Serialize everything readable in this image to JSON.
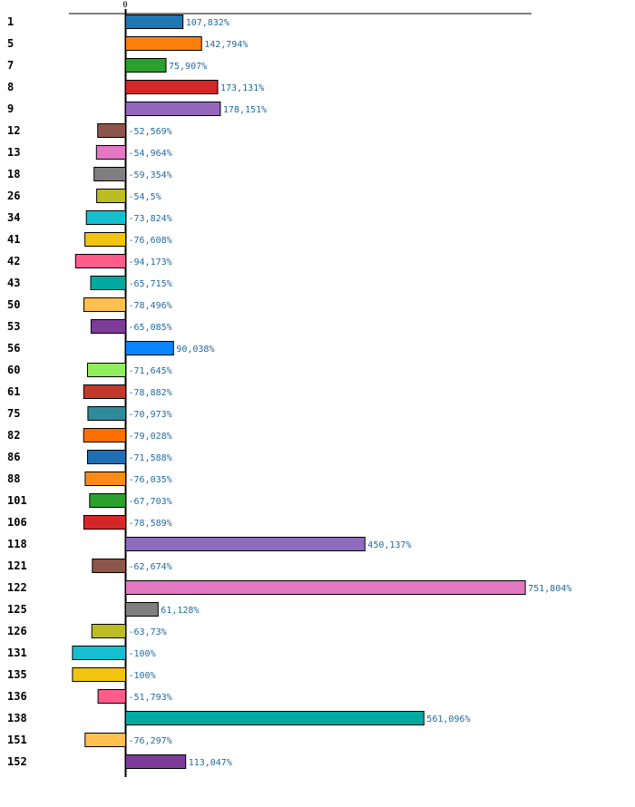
{
  "chart_data": {
    "type": "bar",
    "orientation": "horizontal",
    "title": "",
    "xlabel": "",
    "ylabel": "",
    "zero_tick_label": "0",
    "grid": false,
    "legend": "none",
    "xlim": [
      -100,
      760
    ],
    "categories": [
      "1",
      "5",
      "7",
      "8",
      "9",
      "12",
      "13",
      "18",
      "26",
      "34",
      "41",
      "42",
      "43",
      "50",
      "53",
      "56",
      "60",
      "61",
      "75",
      "82",
      "86",
      "88",
      "101",
      "106",
      "118",
      "121",
      "122",
      "125",
      "126",
      "131",
      "135",
      "136",
      "138",
      "151",
      "152"
    ],
    "values": [
      107.832,
      142.794,
      75.907,
      173.131,
      178.151,
      -52.569,
      -54.964,
      -59.354,
      -54.5,
      -73.824,
      -76.608,
      -94.173,
      -65.715,
      -78.496,
      -65.085,
      90.038,
      -71.645,
      -78.882,
      -70.973,
      -79.028,
      -71.588,
      -76.035,
      -67.703,
      -78.589,
      450.137,
      -62.674,
      751.804,
      61.128,
      -63.73,
      -100,
      -100,
      -51.793,
      561.096,
      -76.297,
      113.047
    ],
    "value_labels": [
      "107,832%",
      "142,794%",
      "75,907%",
      "173,131%",
      "178,151%",
      "-52,569%",
      "-54,964%",
      "-59,354%",
      "-54,5%",
      "-73,824%",
      "-76,608%",
      "-94,173%",
      "-65,715%",
      "-78,496%",
      "-65,085%",
      "90,038%",
      "-71,645%",
      "-78,882%",
      "-70,973%",
      "-79,028%",
      "-71,588%",
      "-76,035%",
      "-67,703%",
      "-78,589%",
      "450,137%",
      "-62,674%",
      "751,804%",
      "61,128%",
      "-63,73%",
      "-100%",
      "-100%",
      "-51,793%",
      "561,096%",
      "-76,297%",
      "113,047%"
    ],
    "colors": [
      "#1f77b4",
      "#ff7f0e",
      "#2ca02c",
      "#d62728",
      "#9467bd",
      "#8c564b",
      "#e377c2",
      "#7f7f7f",
      "#bcbd22",
      "#17becf",
      "#f1c40f",
      "#ff5c8a",
      "#00aaa0",
      "#ffc04d",
      "#7d3c98",
      "#0a84ff",
      "#90ee5a",
      "#c0392b",
      "#2e8b9a",
      "#ff6f00",
      "#1f6fb4",
      "#ff8a1a",
      "#2ca02c",
      "#d62728",
      "#8e6bbd",
      "#8c564b",
      "#e377c2",
      "#7f7f7f",
      "#bcbd22",
      "#17becf",
      "#f1c40f",
      "#ff5c8a",
      "#00aaa0",
      "#ffc04d",
      "#7d3c98"
    ]
  }
}
